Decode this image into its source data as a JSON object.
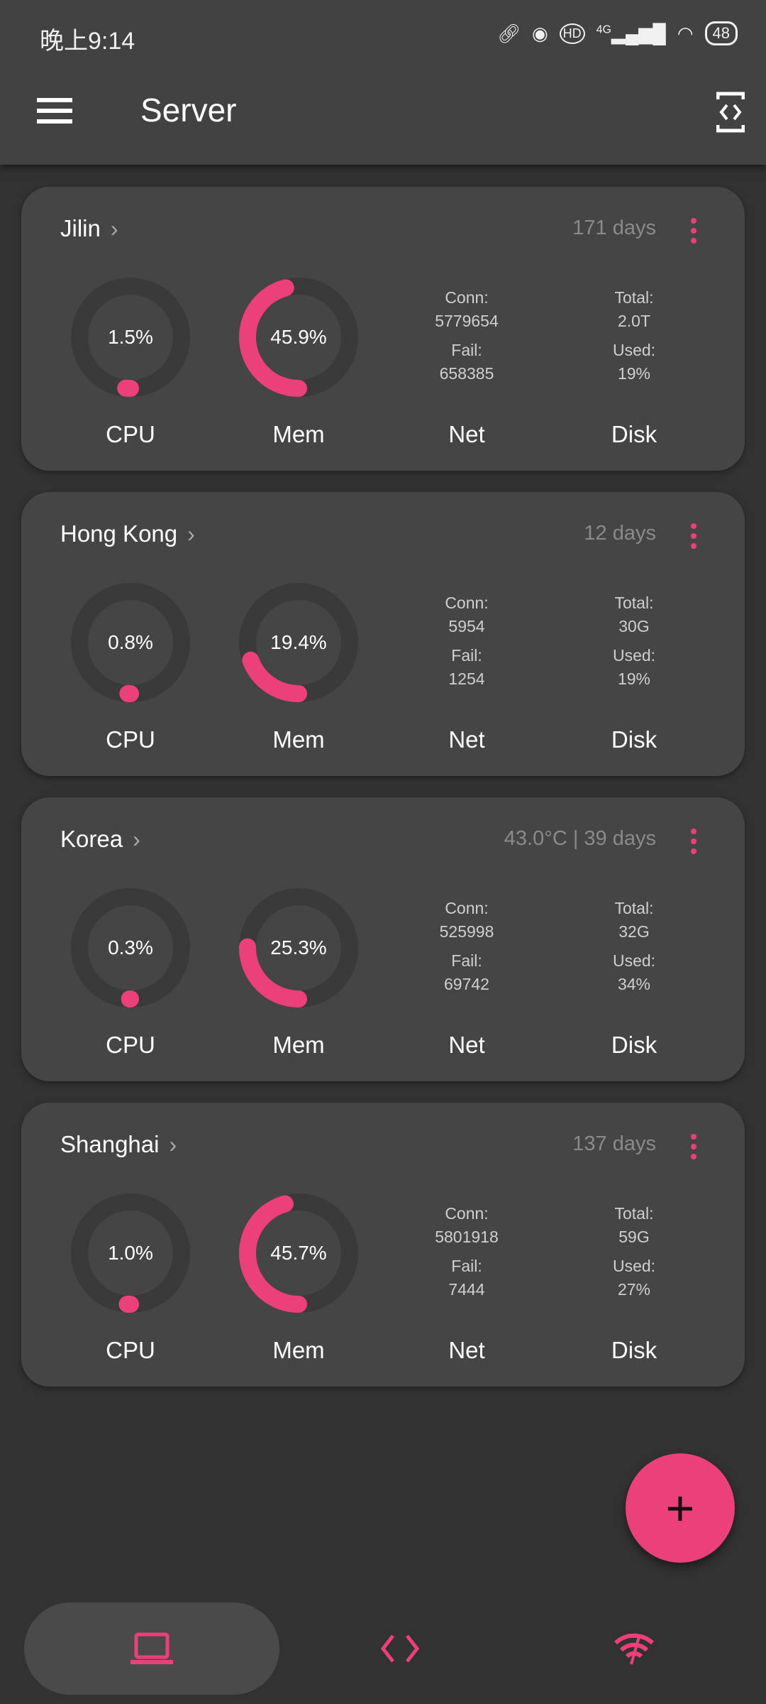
{
  "status_bar": {
    "time": "晚上9:14",
    "network": "4G",
    "battery": "48"
  },
  "app_bar": {
    "title": "Server",
    "menu_icon": "hamburger-menu-icon",
    "action_icon": "code-view-icon"
  },
  "accent_color": "#ec407a",
  "labels": {
    "cpu": "CPU",
    "mem": "Mem",
    "net": "Net",
    "disk": "Disk",
    "conn": "Conn:",
    "fail": "Fail:",
    "total": "Total:",
    "used": "Used:"
  },
  "servers": [
    {
      "name": "Jilin",
      "uptime": "171 days",
      "cpu": "1.5%",
      "cpu_value": 1.5,
      "mem": "45.9%",
      "mem_value": 45.9,
      "conn": "5779654",
      "fail": "658385",
      "total": "2.0T",
      "used": "19%"
    },
    {
      "name": "Hong Kong",
      "uptime": "12 days",
      "cpu": "0.8%",
      "cpu_value": 0.8,
      "mem": "19.4%",
      "mem_value": 19.4,
      "conn": "5954",
      "fail": "1254",
      "total": "30G",
      "used": "19%"
    },
    {
      "name": "Korea",
      "uptime": "43.0°C | 39 days",
      "cpu": "0.3%",
      "cpu_value": 0.3,
      "mem": "25.3%",
      "mem_value": 25.3,
      "conn": "525998",
      "fail": "69742",
      "total": "32G",
      "used": "34%"
    },
    {
      "name": "Shanghai",
      "uptime": "137 days",
      "cpu": "1.0%",
      "cpu_value": 1.0,
      "mem": "45.7%",
      "mem_value": 45.7,
      "conn": "5801918",
      "fail": "7444",
      "total": "59G",
      "used": "27%"
    }
  ],
  "fab": {
    "label": "+"
  },
  "bottom_nav": [
    {
      "icon": "laptop-icon",
      "active": true
    },
    {
      "icon": "code-icon",
      "active": false
    },
    {
      "icon": "wifi-off-icon",
      "active": false
    }
  ]
}
